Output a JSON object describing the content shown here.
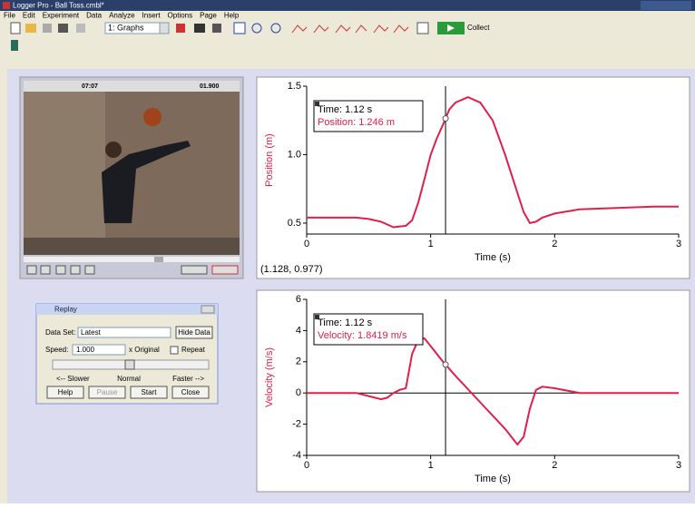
{
  "window": {
    "title": "Logger Pro - Ball Toss.cmbl*"
  },
  "menu": [
    "File",
    "Edit",
    "Experiment",
    "Data",
    "Analyze",
    "Insert",
    "Options",
    "Page",
    "Help"
  ],
  "toolbar": {
    "page_select": "1: Graphs",
    "collect": "Collect"
  },
  "video": {
    "left_time": "07:07",
    "right_time": "01.900"
  },
  "replay": {
    "title": "Replay",
    "data_set_label": "Data Set:",
    "data_set": "Latest",
    "hide_data": "Hide Data",
    "speed_label": "Speed:",
    "speed": "1.000",
    "speed_unit": "x Original",
    "repeat": "Repeat",
    "slower": "<-- Slower",
    "normal": "Normal",
    "faster": "Faster -->",
    "buttons": [
      "Help",
      "Pause",
      "Start",
      "Close"
    ]
  },
  "graphs": [
    {
      "type": "line",
      "y_label": "Position (m)",
      "x_label": "Time (s)",
      "color": "#e0204a",
      "x": [
        0,
        0.2,
        0.4,
        0.5,
        0.6,
        0.7,
        0.8,
        0.85,
        0.9,
        0.95,
        1.0,
        1.05,
        1.1,
        1.15,
        1.2,
        1.3,
        1.4,
        1.5,
        1.6,
        1.7,
        1.75,
        1.8,
        1.85,
        1.9,
        2.0,
        2.2,
        2.5,
        2.8,
        3.0
      ],
      "values": [
        0.54,
        0.54,
        0.54,
        0.53,
        0.51,
        0.47,
        0.48,
        0.52,
        0.65,
        0.82,
        1.0,
        1.12,
        1.22,
        1.33,
        1.38,
        1.42,
        1.38,
        1.25,
        1.0,
        0.72,
        0.58,
        0.5,
        0.51,
        0.54,
        0.57,
        0.6,
        0.61,
        0.62,
        0.62
      ],
      "xlim": [
        0,
        3
      ],
      "ylim": [
        0.42,
        1.5
      ],
      "xticks": [
        0,
        1,
        2,
        3
      ],
      "yticks": [
        0.5,
        {
          "value": 1,
          "label": "1.0"
        },
        1.5
      ],
      "cursor_x": 1.12,
      "readout": [
        "Time: 1.12 s",
        "Position: 1.246 m"
      ],
      "coords": "(1.128, 0.977)"
    },
    {
      "type": "line",
      "y_label": "Velocity (m/s)",
      "x_label": "Time (s)",
      "color": "#e0204a",
      "x": [
        0,
        0.4,
        0.5,
        0.6,
        0.65,
        0.7,
        0.75,
        0.8,
        0.85,
        0.9,
        0.95,
        1.0,
        1.1,
        1.2,
        1.4,
        1.6,
        1.7,
        1.75,
        1.8,
        1.85,
        1.9,
        2.0,
        2.2,
        2.5,
        3.0
      ],
      "values": [
        0,
        0,
        -0.2,
        -0.4,
        -0.3,
        0,
        0.2,
        0.3,
        2.5,
        3.4,
        3.5,
        3,
        2,
        1.1,
        -0.6,
        -2.3,
        -3.3,
        -2.8,
        -1,
        0.2,
        0.4,
        0.3,
        0,
        0,
        0
      ],
      "xlim": [
        0,
        3
      ],
      "ylim": [
        -4,
        6
      ],
      "xticks": [
        0,
        1,
        2,
        3
      ],
      "yticks": [
        -4,
        -2,
        0,
        2,
        4,
        6
      ],
      "cursor_x": 1.12,
      "readout": [
        "Time: 1.12 s",
        "Velocity: 1.8419 m/s"
      ]
    }
  ]
}
